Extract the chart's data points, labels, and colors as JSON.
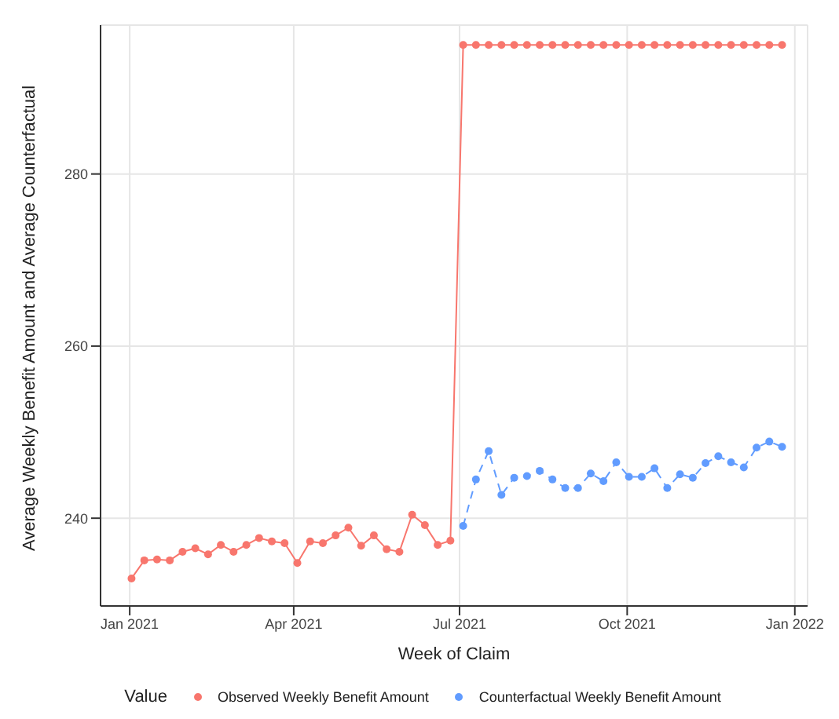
{
  "chart_data": {
    "type": "line",
    "xlabel": "Week of Claim",
    "ylabel": "Average Weekly Benefit Amount and Average Counterfactual",
    "legend_title": "Value",
    "legend": "bottom",
    "grid": true,
    "marker": "circle",
    "xlim": [
      "2020-12-16",
      "2022-01-08"
    ],
    "xticks": [
      {
        "value": "2021-01-01",
        "label": "Jan 2021"
      },
      {
        "value": "2021-04-01",
        "label": "Apr 2021"
      },
      {
        "value": "2021-07-01",
        "label": "Jul 2021"
      },
      {
        "value": "2021-10-01",
        "label": "Oct 2021"
      },
      {
        "value": "2022-01-01",
        "label": "Jan 2022"
      }
    ],
    "ylim": [
      229.8,
      297.3
    ],
    "yticks": [
      240,
      260,
      280
    ],
    "series": [
      {
        "name": "Observed Weekly Benefit Amount",
        "color": "#f8766d",
        "line_style": "solid",
        "x": [
          "2021-01-02",
          "2021-01-09",
          "2021-01-16",
          "2021-01-23",
          "2021-01-30",
          "2021-02-06",
          "2021-02-13",
          "2021-02-20",
          "2021-02-27",
          "2021-03-06",
          "2021-03-13",
          "2021-03-20",
          "2021-03-27",
          "2021-04-03",
          "2021-04-10",
          "2021-04-17",
          "2021-04-24",
          "2021-05-01",
          "2021-05-08",
          "2021-05-15",
          "2021-05-22",
          "2021-05-29",
          "2021-06-05",
          "2021-06-12",
          "2021-06-19",
          "2021-06-26",
          "2021-07-03",
          "2021-07-10",
          "2021-07-17",
          "2021-07-24",
          "2021-07-31",
          "2021-08-07",
          "2021-08-14",
          "2021-08-21",
          "2021-08-28",
          "2021-09-04",
          "2021-09-11",
          "2021-09-18",
          "2021-09-25",
          "2021-10-02",
          "2021-10-09",
          "2021-10-16",
          "2021-10-23",
          "2021-10-30",
          "2021-11-06",
          "2021-11-13",
          "2021-11-20",
          "2021-11-27",
          "2021-12-04",
          "2021-12-11",
          "2021-12-18",
          "2021-12-25"
        ],
        "values": [
          233.0,
          235.1,
          235.2,
          235.1,
          236.1,
          236.5,
          235.8,
          236.9,
          236.1,
          236.9,
          237.7,
          237.3,
          237.1,
          234.8,
          237.3,
          237.1,
          238.0,
          238.9,
          236.8,
          238.0,
          236.4,
          236.1,
          240.4,
          239.2,
          236.9,
          237.4,
          295,
          295,
          295,
          295,
          295,
          295,
          295,
          295,
          295,
          295,
          295,
          295,
          295,
          295,
          295,
          295,
          295,
          295,
          295,
          295,
          295,
          295,
          295,
          295,
          295,
          295
        ]
      },
      {
        "name": "Counterfactual Weekly Benefit Amount",
        "color": "#619cff",
        "line_style": "dashed",
        "x": [
          "2021-07-03",
          "2021-07-10",
          "2021-07-17",
          "2021-07-24",
          "2021-07-31",
          "2021-08-07",
          "2021-08-14",
          "2021-08-21",
          "2021-08-28",
          "2021-09-04",
          "2021-09-11",
          "2021-09-18",
          "2021-09-25",
          "2021-10-02",
          "2021-10-09",
          "2021-10-16",
          "2021-10-23",
          "2021-10-30",
          "2021-11-06",
          "2021-11-13",
          "2021-11-20",
          "2021-11-27",
          "2021-12-04",
          "2021-12-11",
          "2021-12-18",
          "2021-12-25"
        ],
        "values": [
          239.1,
          244.5,
          247.8,
          242.7,
          244.7,
          244.9,
          245.5,
          244.5,
          243.5,
          243.5,
          245.2,
          244.3,
          246.5,
          244.8,
          244.8,
          245.8,
          243.5,
          245.1,
          244.7,
          246.4,
          247.2,
          246.5,
          245.9,
          248.2,
          248.9,
          248.3
        ]
      }
    ]
  }
}
